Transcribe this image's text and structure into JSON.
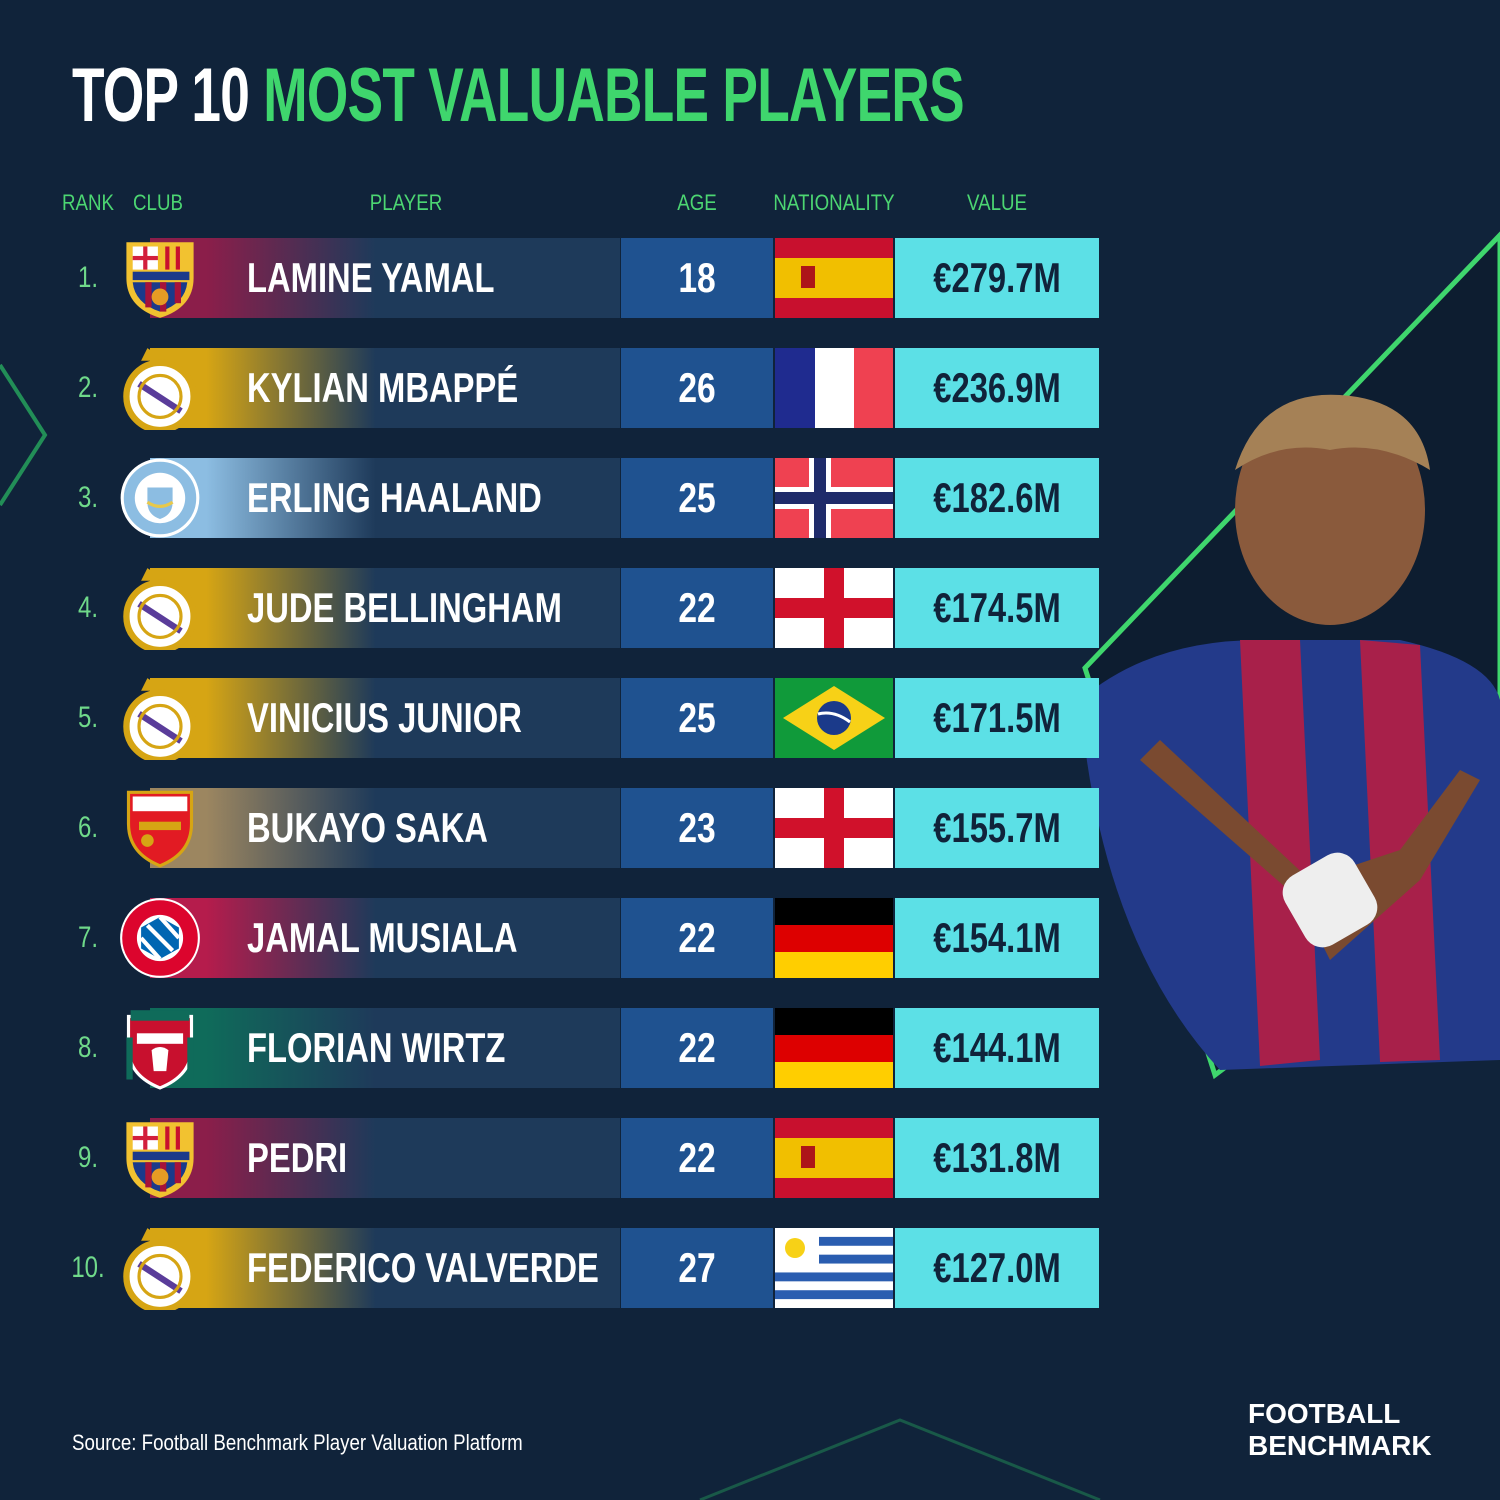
{
  "header": {
    "title_lead": "TOP 10",
    "title_highlight": "MOST VALUABLE PLAYERS"
  },
  "table": {
    "columns": [
      "RANK",
      "CLUB",
      "PLAYER",
      "AGE",
      "NATIONALITY",
      "VALUE"
    ],
    "rows": [
      {
        "rank": "1.",
        "player": "LAMINE YAMAL",
        "age": 18,
        "value": "€279.7M"
      },
      {
        "rank": "2.",
        "player": "KYLIAN MBAPPÉ",
        "age": 26,
        "value": "€236.9M"
      },
      {
        "rank": "3.",
        "player": "ERLING HAALAND",
        "age": 25,
        "value": "€182.6M"
      },
      {
        "rank": "4.",
        "player": "JUDE BELLINGHAM",
        "age": 22,
        "value": "€174.5M"
      },
      {
        "rank": "5.",
        "player": "VINICIUS JUNIOR",
        "age": 25,
        "value": "€171.5M"
      },
      {
        "rank": "6.",
        "player": "BUKAYO SAKA",
        "age": 23,
        "value": "€155.7M"
      },
      {
        "rank": "7.",
        "player": "JAMAL MUSIALA",
        "age": 22,
        "value": "€154.1M"
      },
      {
        "rank": "8.",
        "player": "FLORIAN WIRTZ",
        "age": 22,
        "value": "€144.1M"
      },
      {
        "rank": "9.",
        "player": "PEDRI",
        "age": 22,
        "value": "€131.8M"
      },
      {
        "rank": "10.",
        "player": "FEDERICO VALVERDE",
        "age": 27,
        "value": "€127.0M"
      }
    ]
  },
  "footer": {
    "source": "Source: Football Benchmark Player Valuation Platform",
    "brand": [
      "FOOTBALL",
      "BENCHMARK"
    ]
  }
}
